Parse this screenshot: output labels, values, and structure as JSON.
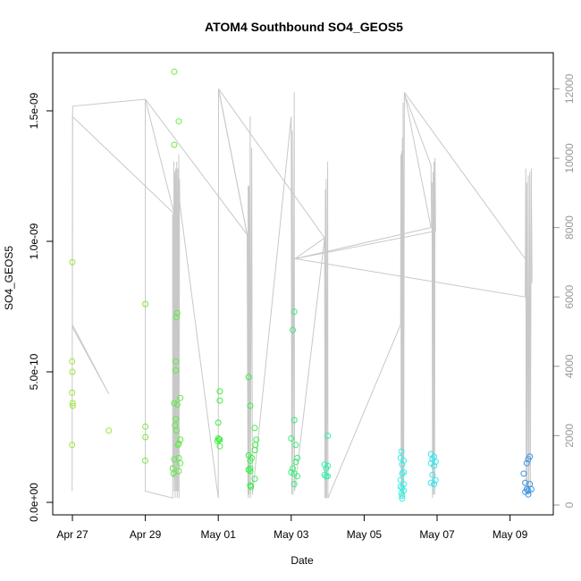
{
  "chart_data": {
    "type": "scatter",
    "title": "ATOM4 Southbound SO4_GEOS5",
    "xlabel": "Date",
    "ylabel": "SO4_GEOS5",
    "xlim": [
      "2016-04-26T12:00",
      "2016-05-10T06:00"
    ],
    "ylim": [
      0,
      1.65e-09
    ],
    "y2lim": [
      0,
      12000
    ],
    "x_ticks": [
      {
        "date": "2016-04-27",
        "label": "Apr 27"
      },
      {
        "date": "2016-04-29",
        "label": "Apr 29"
      },
      {
        "date": "2016-05-01",
        "label": "May 01"
      },
      {
        "date": "2016-05-03",
        "label": "May 03"
      },
      {
        "date": "2016-05-05",
        "label": "May 05"
      },
      {
        "date": "2016-05-07",
        "label": "May 07"
      },
      {
        "date": "2016-05-09",
        "label": "May 09"
      }
    ],
    "y_ticks": [
      {
        "value": 0,
        "label": "0.0e+00"
      },
      {
        "value": 5e-10,
        "label": "5.0e-10"
      },
      {
        "value": 1e-09,
        "label": "1.0e-09"
      },
      {
        "value": 1.5e-09,
        "label": "1.5e-09"
      }
    ],
    "y2_ticks": [
      {
        "value": 0,
        "label": "0"
      },
      {
        "value": 2000,
        "label": "2000"
      },
      {
        "value": 4000,
        "label": "4000"
      },
      {
        "value": 6000,
        "label": "6000"
      },
      {
        "value": 8000,
        "label": "8000"
      },
      {
        "value": 10000,
        "label": "10000"
      },
      {
        "value": 12000,
        "label": "12000"
      }
    ],
    "grid": false,
    "colors": {
      "altitude_line": "#c8c8c8",
      "axis": "#000000",
      "right_axis": "#999999"
    },
    "points": [
      {
        "t": "2016-04-27T00:00",
        "y": 9.2e-10,
        "color": "#9ae63c"
      },
      {
        "t": "2016-04-26T23:50",
        "y": 5.4e-10,
        "color": "#9ae63c"
      },
      {
        "t": "2016-04-27T00:00",
        "y": 5e-10,
        "color": "#9ae63c"
      },
      {
        "t": "2016-04-26T23:50",
        "y": 4.2e-10,
        "color": "#9ae63c"
      },
      {
        "t": "2016-04-27T00:10",
        "y": 3.8e-10,
        "color": "#9ae63c"
      },
      {
        "t": "2016-04-27T00:15",
        "y": 3.7e-10,
        "color": "#9ae63c"
      },
      {
        "t": "2016-04-26T23:50",
        "y": 2.2e-10,
        "color": "#9ae63c"
      },
      {
        "t": "2016-04-28T00:00",
        "y": 2.75e-10,
        "color": "#9ae63c"
      },
      {
        "t": "2016-04-29T00:00",
        "y": 7.6e-10,
        "color": "#7fe640"
      },
      {
        "t": "2016-04-29T00:00",
        "y": 2.9e-10,
        "color": "#7fe640"
      },
      {
        "t": "2016-04-29T00:05",
        "y": 2.5e-10,
        "color": "#7fe640"
      },
      {
        "t": "2016-04-28T23:55",
        "y": 1.6e-10,
        "color": "#7fe640"
      },
      {
        "t": "2016-04-29T19:00",
        "y": 1.65e-09,
        "color": "#6aee3c"
      },
      {
        "t": "2016-04-29T22:00",
        "y": 1.46e-09,
        "color": "#6aee3c"
      },
      {
        "t": "2016-04-29T19:00",
        "y": 1.37e-09,
        "color": "#6aee3c"
      },
      {
        "t": "2016-04-29T21:00",
        "y": 7.25e-10,
        "color": "#5aee3c"
      },
      {
        "t": "2016-04-29T20:30",
        "y": 7.1e-10,
        "color": "#5aee3c"
      },
      {
        "t": "2016-04-29T20:00",
        "y": 5.4e-10,
        "color": "#5aee3c"
      },
      {
        "t": "2016-04-29T20:00",
        "y": 5.05e-10,
        "color": "#5aee3c"
      },
      {
        "t": "2016-04-29T23:00",
        "y": 4e-10,
        "color": "#5aee3c"
      },
      {
        "t": "2016-04-29T19:00",
        "y": 3.8e-10,
        "color": "#5aee3c"
      },
      {
        "t": "2016-04-29T21:00",
        "y": 3.75e-10,
        "color": "#5aee3c"
      },
      {
        "t": "2016-04-29T20:00",
        "y": 3.2e-10,
        "color": "#5aee3c"
      },
      {
        "t": "2016-04-29T19:30",
        "y": 2.95e-10,
        "color": "#5aee3c"
      },
      {
        "t": "2016-04-29T20:30",
        "y": 2.75e-10,
        "color": "#5aee3c"
      },
      {
        "t": "2016-04-29T23:00",
        "y": 2.4e-10,
        "color": "#5aee3c"
      },
      {
        "t": "2016-04-29T22:00",
        "y": 2.25e-10,
        "color": "#5aee3c"
      },
      {
        "t": "2016-04-29T21:30",
        "y": 2.2e-10,
        "color": "#5aee3c"
      },
      {
        "t": "2016-04-29T19:00",
        "y": 1.65e-10,
        "color": "#5aee3c"
      },
      {
        "t": "2016-04-29T22:00",
        "y": 1.7e-10,
        "color": "#5aee3c"
      },
      {
        "t": "2016-04-29T23:00",
        "y": 1.5e-10,
        "color": "#5aee3c"
      },
      {
        "t": "2016-04-29T18:00",
        "y": 1.3e-10,
        "color": "#5aee3c"
      },
      {
        "t": "2016-04-29T22:00",
        "y": 1.2e-10,
        "color": "#5aee3c"
      },
      {
        "t": "2016-04-29T18:30",
        "y": 1.1e-10,
        "color": "#5aee3c"
      },
      {
        "t": "2016-05-01T01:00",
        "y": 4.25e-10,
        "color": "#3cf03c"
      },
      {
        "t": "2016-05-01T01:00",
        "y": 3.9e-10,
        "color": "#3cf03c"
      },
      {
        "t": "2016-05-01T00:00",
        "y": 3.05e-10,
        "color": "#3cf03c"
      },
      {
        "t": "2016-05-01T00:00",
        "y": 2.45e-10,
        "color": "#3cf03c"
      },
      {
        "t": "2016-05-01T00:30",
        "y": 2.4e-10,
        "color": "#3cf03c"
      },
      {
        "t": "2016-04-30T23:30",
        "y": 2.35e-10,
        "color": "#3cf03c"
      },
      {
        "t": "2016-05-01T01:00",
        "y": 2.4e-10,
        "color": "#3cf03c"
      },
      {
        "t": "2016-05-01T01:00",
        "y": 2.15e-10,
        "color": "#3cf03c"
      },
      {
        "t": "2016-05-01T20:00",
        "y": 4.8e-10,
        "color": "#34f046"
      },
      {
        "t": "2016-05-01T21:00",
        "y": 3.7e-10,
        "color": "#34f046"
      },
      {
        "t": "2016-05-02T00:00",
        "y": 2.85e-10,
        "color": "#34f046"
      },
      {
        "t": "2016-05-02T01:00",
        "y": 2.4e-10,
        "color": "#34f046"
      },
      {
        "t": "2016-05-02T00:30",
        "y": 2.2e-10,
        "color": "#34f046"
      },
      {
        "t": "2016-05-02T00:00",
        "y": 2e-10,
        "color": "#34f046"
      },
      {
        "t": "2016-05-01T20:00",
        "y": 1.8e-10,
        "color": "#34f046"
      },
      {
        "t": "2016-05-01T22:00",
        "y": 1.7e-10,
        "color": "#34f046"
      },
      {
        "t": "2016-05-01T21:00",
        "y": 1.6e-10,
        "color": "#34f046"
      },
      {
        "t": "2016-05-01T21:00",
        "y": 1.3e-10,
        "color": "#34f046"
      },
      {
        "t": "2016-05-01T20:00",
        "y": 1.25e-10,
        "color": "#34f046"
      },
      {
        "t": "2016-05-01T21:00",
        "y": 1.2e-10,
        "color": "#34f046"
      },
      {
        "t": "2016-05-02T00:00",
        "y": 9e-11,
        "color": "#34f046"
      },
      {
        "t": "2016-05-01T21:00",
        "y": 6.5e-11,
        "color": "#34f046"
      },
      {
        "t": "2016-05-01T21:30",
        "y": 6e-11,
        "color": "#34f046"
      },
      {
        "t": "2016-05-03T02:00",
        "y": 7.3e-10,
        "color": "#34f078"
      },
      {
        "t": "2016-05-03T01:00",
        "y": 6.6e-10,
        "color": "#34f078"
      },
      {
        "t": "2016-05-03T02:00",
        "y": 3.15e-10,
        "color": "#34f078"
      },
      {
        "t": "2016-05-03T00:00",
        "y": 2.45e-10,
        "color": "#34f078"
      },
      {
        "t": "2016-05-03T03:00",
        "y": 2.2e-10,
        "color": "#34f078"
      },
      {
        "t": "2016-05-03T04:00",
        "y": 1.7e-10,
        "color": "#34f078"
      },
      {
        "t": "2016-05-03T03:00",
        "y": 1.55e-10,
        "color": "#34f078"
      },
      {
        "t": "2016-05-03T01:00",
        "y": 1.3e-10,
        "color": "#34f078"
      },
      {
        "t": "2016-05-03T00:00",
        "y": 1.15e-10,
        "color": "#34f078"
      },
      {
        "t": "2016-05-03T02:00",
        "y": 1.1e-10,
        "color": "#34f078"
      },
      {
        "t": "2016-05-03T04:00",
        "y": 1e-10,
        "color": "#34f078"
      },
      {
        "t": "2016-05-03T02:00",
        "y": 7e-11,
        "color": "#34f078"
      },
      {
        "t": "2016-05-04T00:00",
        "y": 2.55e-10,
        "color": "#34f0aa"
      },
      {
        "t": "2016-05-03T22:00",
        "y": 1.45e-10,
        "color": "#34f0aa"
      },
      {
        "t": "2016-05-03T23:00",
        "y": 1.3e-10,
        "color": "#34f0aa"
      },
      {
        "t": "2016-05-04T00:00",
        "y": 1.4e-10,
        "color": "#34f0aa"
      },
      {
        "t": "2016-05-03T22:00",
        "y": 1.05e-10,
        "color": "#34f0aa"
      },
      {
        "t": "2016-05-03T23:00",
        "y": 1e-10,
        "color": "#34f0aa"
      },
      {
        "t": "2016-05-04T00:00",
        "y": 1e-10,
        "color": "#34f0aa"
      },
      {
        "t": "2016-05-06T00:30",
        "y": 1.95e-10,
        "color": "#34f0e6"
      },
      {
        "t": "2016-05-06T00:00",
        "y": 1.7e-10,
        "color": "#34f0e6"
      },
      {
        "t": "2016-05-06T02:00",
        "y": 1.6e-10,
        "color": "#34f0e6"
      },
      {
        "t": "2016-05-06T01:00",
        "y": 1.45e-10,
        "color": "#34f0e6"
      },
      {
        "t": "2016-05-06T02:00",
        "y": 1.15e-10,
        "color": "#34f0e6"
      },
      {
        "t": "2016-05-06T01:00",
        "y": 1.1e-10,
        "color": "#34f0e6"
      },
      {
        "t": "2016-05-06T00:00",
        "y": 8.5e-11,
        "color": "#34f0e6"
      },
      {
        "t": "2016-05-06T02:00",
        "y": 7e-11,
        "color": "#34f0e6"
      },
      {
        "t": "2016-05-06T00:00",
        "y": 6e-11,
        "color": "#34f0e6"
      },
      {
        "t": "2016-05-06T01:00",
        "y": 5.5e-11,
        "color": "#34f0e6"
      },
      {
        "t": "2016-05-06T02:00",
        "y": 4.5e-11,
        "color": "#34f0e6"
      },
      {
        "t": "2016-05-06T00:30",
        "y": 3.5e-11,
        "color": "#34f0e6"
      },
      {
        "t": "2016-05-06T01:00",
        "y": 2.5e-11,
        "color": "#34f0e6"
      },
      {
        "t": "2016-05-06T01:00",
        "y": 1.5e-11,
        "color": "#34f0e6"
      },
      {
        "t": "2016-05-06T20:00",
        "y": 1.85e-10,
        "color": "#34e6f0"
      },
      {
        "t": "2016-05-06T22:00",
        "y": 1.75e-10,
        "color": "#34e6f0"
      },
      {
        "t": "2016-05-06T21:00",
        "y": 1.65e-10,
        "color": "#34e6f0"
      },
      {
        "t": "2016-05-06T23:00",
        "y": 1.55e-10,
        "color": "#34e6f0"
      },
      {
        "t": "2016-05-06T20:00",
        "y": 1.5e-10,
        "color": "#34e6f0"
      },
      {
        "t": "2016-05-06T22:00",
        "y": 1.4e-10,
        "color": "#34e6f0"
      },
      {
        "t": "2016-05-06T21:00",
        "y": 1.05e-10,
        "color": "#34e6f0"
      },
      {
        "t": "2016-05-06T23:00",
        "y": 8.5e-11,
        "color": "#34e6f0"
      },
      {
        "t": "2016-05-06T20:00",
        "y": 7.5e-11,
        "color": "#34e6f0"
      },
      {
        "t": "2016-05-06T22:00",
        "y": 7e-11,
        "color": "#34e6f0"
      },
      {
        "t": "2016-05-09T13:00",
        "y": 1.75e-10,
        "color": "#3c96e6"
      },
      {
        "t": "2016-05-09T12:00",
        "y": 1.65e-10,
        "color": "#3c96e6"
      },
      {
        "t": "2016-05-09T11:00",
        "y": 1.5e-10,
        "color": "#3c96e6"
      },
      {
        "t": "2016-05-09T09:00",
        "y": 1.1e-10,
        "color": "#3c96e6"
      },
      {
        "t": "2016-05-09T10:00",
        "y": 7.5e-11,
        "color": "#3c96e6"
      },
      {
        "t": "2016-05-09T13:00",
        "y": 7e-11,
        "color": "#3c96e6"
      },
      {
        "t": "2016-05-09T11:00",
        "y": 5e-11,
        "color": "#3c96e6"
      },
      {
        "t": "2016-05-09T12:00",
        "y": 4.5e-11,
        "color": "#3c96e6"
      },
      {
        "t": "2016-05-09T14:00",
        "y": 5e-11,
        "color": "#3c96e6"
      },
      {
        "t": "2016-05-09T10:00",
        "y": 4e-11,
        "color": "#3c96e6"
      },
      {
        "t": "2016-05-09T12:00",
        "y": 3e-11,
        "color": "#3c96e6"
      }
    ],
    "altitude_track": [
      [
        "2016-04-26T23:50",
        400
      ],
      [
        "2016-04-27T00:05",
        11200
      ],
      [
        "2016-04-27T00:00",
        5200
      ],
      [
        "2016-04-27T00:20",
        5100
      ],
      [
        "2016-04-28T00:00",
        3200
      ],
      [
        "2016-04-27T00:00",
        5200
      ],
      [
        "2016-04-27T00:10",
        11500
      ],
      [
        "2016-04-29T00:00",
        11700
      ],
      [
        "2016-04-29T00:00",
        400
      ],
      [
        "2016-04-29T18:00",
        200
      ],
      [
        "2016-04-29T18:00",
        8400
      ],
      [
        "2016-04-29T18:30",
        8200
      ],
      [
        "2016-04-29T18:40",
        800
      ],
      [
        "2016-04-29T18:50",
        9900
      ],
      [
        "2016-04-29T19:00",
        400
      ],
      [
        "2016-04-29T19:20",
        9600
      ],
      [
        "2016-04-29T19:40",
        200
      ],
      [
        "2016-04-29T20:00",
        9700
      ],
      [
        "2016-04-29T20:20",
        400
      ],
      [
        "2016-04-29T20:40",
        9900
      ],
      [
        "2016-04-29T21:00",
        200
      ],
      [
        "2016-04-29T21:20",
        9700
      ],
      [
        "2016-04-29T21:30",
        400
      ],
      [
        "2016-04-29T22:00",
        10100
      ],
      [
        "2016-04-29T22:10",
        200
      ],
      [
        "2016-04-29T22:30",
        9400
      ],
      [
        "2016-04-29T22:40",
        8700
      ],
      [
        "2016-05-01T00:00",
        200
      ],
      [
        "2016-05-01T00:10",
        12000
      ],
      [
        "2016-05-01T19:00",
        7800
      ],
      [
        "2016-05-01T19:30",
        300
      ],
      [
        "2016-05-01T19:40",
        9200
      ],
      [
        "2016-05-01T19:50",
        200
      ],
      [
        "2016-05-01T20:10",
        9200
      ],
      [
        "2016-05-01T20:20",
        300
      ],
      [
        "2016-05-01T21:00",
        11200
      ],
      [
        "2016-05-01T21:10",
        200
      ],
      [
        "2016-05-01T22:00",
        10300
      ],
      [
        "2016-05-01T22:30",
        300
      ],
      [
        "2016-05-03T00:00",
        11200
      ],
      [
        "2016-05-03T00:20",
        300
      ],
      [
        "2016-05-03T00:40",
        10800
      ],
      [
        "2016-05-03T01:00",
        6300
      ],
      [
        "2016-05-03T01:10",
        300
      ],
      [
        "2016-05-03T02:00",
        11900
      ],
      [
        "2016-05-03T02:10",
        400
      ],
      [
        "2016-05-03T22:00",
        7700
      ],
      [
        "2016-05-03T22:10",
        200
      ],
      [
        "2016-05-03T22:30",
        9100
      ],
      [
        "2016-05-03T22:40",
        200
      ],
      [
        "2016-05-03T23:00",
        9400
      ],
      [
        "2016-05-03T23:20",
        200
      ],
      [
        "2016-05-04T00:00",
        9900
      ],
      [
        "2016-05-04T00:10",
        200
      ],
      [
        "2016-05-06T00:00",
        5200
      ],
      [
        "2016-05-06T00:10",
        10100
      ],
      [
        "2016-05-06T00:20",
        200
      ],
      [
        "2016-05-06T00:40",
        10200
      ],
      [
        "2016-05-06T00:50",
        300
      ],
      [
        "2016-05-06T01:10",
        10600
      ],
      [
        "2016-05-06T01:20",
        200
      ],
      [
        "2016-05-06T01:40",
        11600
      ],
      [
        "2016-05-06T02:00",
        300
      ],
      [
        "2016-05-06T02:30",
        11900
      ],
      [
        "2016-05-06T03:00",
        11800
      ],
      [
        "2016-05-06T20:00",
        9800
      ],
      [
        "2016-05-06T20:20",
        8000
      ],
      [
        "2016-05-06T20:40",
        9300
      ],
      [
        "2016-05-06T21:00",
        200
      ],
      [
        "2016-05-06T21:20",
        9600
      ],
      [
        "2016-05-06T21:40",
        300
      ],
      [
        "2016-05-06T22:00",
        9900
      ],
      [
        "2016-05-06T22:20",
        300
      ],
      [
        "2016-05-06T22:40",
        10000
      ],
      [
        "2016-05-06T23:00",
        7900
      ],
      [
        "2016-05-03T02:30",
        7100
      ],
      [
        "2016-05-03T03:00",
        7100
      ],
      [
        "2016-05-09T10:00",
        6000
      ],
      [
        "2016-05-09T10:20",
        9700
      ],
      [
        "2016-05-09T10:40",
        400
      ],
      [
        "2016-05-09T11:00",
        9300
      ],
      [
        "2016-05-09T11:20",
        300
      ],
      [
        "2016-05-09T12:00",
        9500
      ],
      [
        "2016-05-09T12:20",
        300
      ],
      [
        "2016-05-09T13:00",
        9600
      ],
      [
        "2016-05-09T13:20",
        300
      ],
      [
        "2016-05-09T14:00",
        9700
      ],
      [
        "2016-05-09T14:30",
        6400
      ]
    ],
    "altitude_overview": [
      [
        "2016-04-27T00:05",
        11200
      ],
      [
        "2016-04-29T19:00",
        8400
      ],
      [
        "2016-04-29T00:00",
        11700
      ],
      [
        "2016-05-01T19:00",
        7800
      ],
      [
        "2016-05-01T00:10",
        12000
      ],
      [
        "2016-05-03T22:00",
        7700
      ],
      [
        "2016-05-03T02:30",
        7100
      ],
      [
        "2016-05-06T20:00",
        8000
      ],
      [
        "2016-05-06T02:30",
        11900
      ],
      [
        "2016-05-09T10:00",
        7100
      ]
    ]
  }
}
